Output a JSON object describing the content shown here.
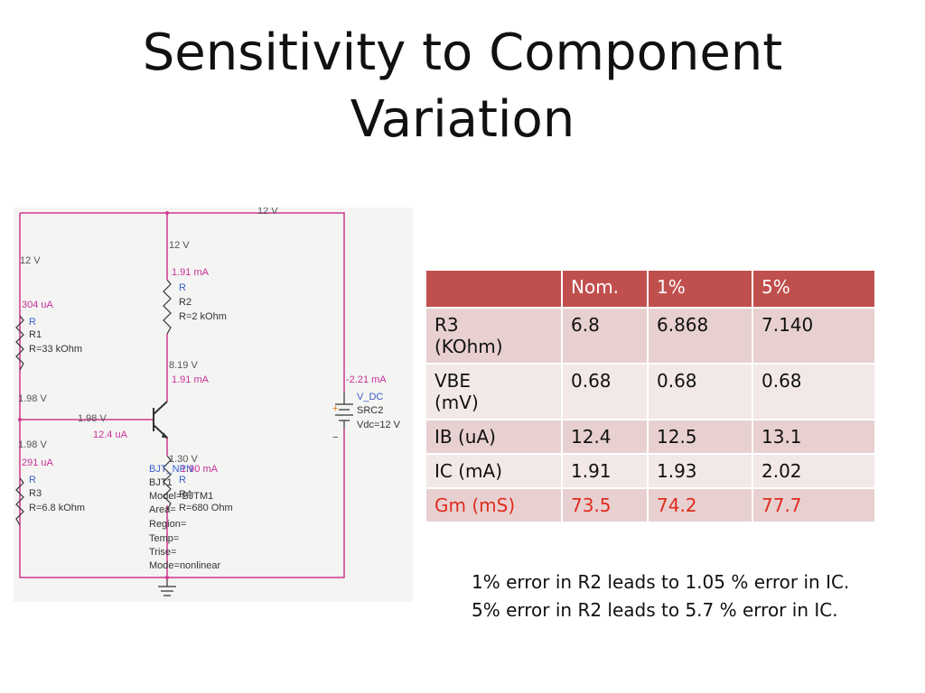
{
  "title": "Sensitivity to Component Variation",
  "schematic": {
    "labels": [
      "12 V",
      "12 V",
      "1.91 mA",
      "R",
      "R2",
      "R=2 kOhm",
      "8.19 V",
      "1.91 mA",
      "12 V",
      "304 uA",
      "R",
      "R1",
      "R=33 kOhm",
      "1.98 V",
      "1.98 V",
      "12.4 uA",
      "1.98 V",
      "291 uA",
      "R",
      "R3",
      "R=6.8 kOhm",
      "1.30 V",
      "1.90 mA",
      "BJT_NPN",
      "BJT1",
      "Model=BJTM1",
      "Area=",
      "Region=",
      "Temp=",
      "Trise=",
      "Mode=nonlinear",
      "R",
      "R4",
      "R=680 Ohm",
      "-2.21 mA",
      "V_DC",
      "SRC2",
      "Vdc=12 V",
      "+",
      "−"
    ]
  },
  "table": {
    "columns": [
      "Nom.",
      "1%",
      "5%"
    ],
    "rows": [
      [
        "R3 (KOhm)",
        "6.8",
        "6.868",
        "7.140"
      ],
      [
        "VBE (mV)",
        "0.68",
        "0.68",
        "0.68"
      ],
      [
        "IB (uA)",
        "12.4",
        "12.5",
        "13.1"
      ],
      [
        "IC (mA)",
        "1.91",
        "1.93",
        "2.02"
      ],
      [
        "Gm (mS)",
        "73.5",
        "74.2",
        "77.7"
      ]
    ]
  },
  "notes": [
    "1% error in R2 leads to 1.05 % error in IC.",
    "5% error in R2 leads to 5.7 % error in IC."
  ]
}
